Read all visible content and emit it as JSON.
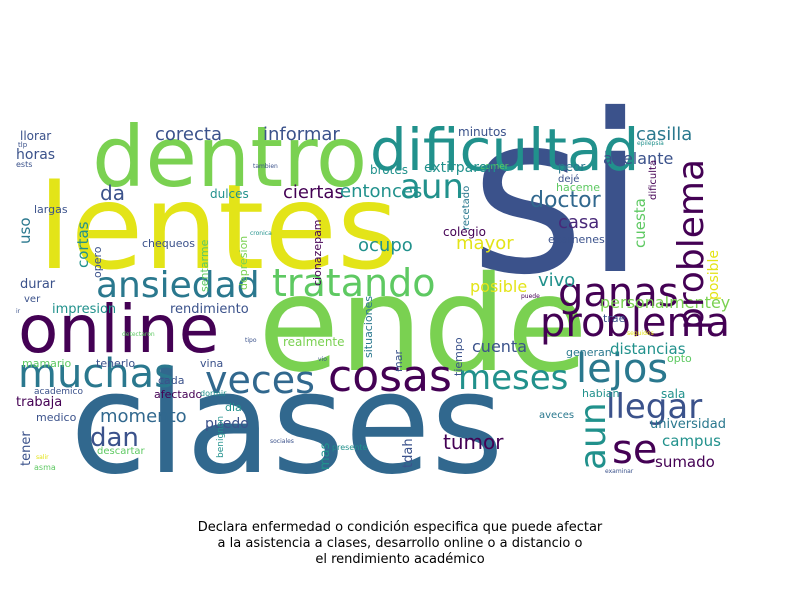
{
  "caption": {
    "lines": [
      "Declara enfermedad o condición especifica que puede afectar",
      "a la asistencia a clases, desarrollo online o a distancio o",
      "el rendimiento académico"
    ]
  },
  "palette": {
    "dark_purple": "#440154",
    "blue": "#3b528b",
    "teal": "#21918c",
    "green": "#5ec962",
    "light_green": "#7ad151",
    "yellow": "#e3e418"
  },
  "words": [
    {
      "text": "si",
      "color": "#3b528b"
    },
    {
      "text": "clases",
      "color": "#31688e"
    },
    {
      "text": "ende",
      "color": "#7ad151"
    },
    {
      "text": "lentes",
      "color": "#e3e418"
    },
    {
      "text": "dentro",
      "color": "#7ad151"
    },
    {
      "text": "online",
      "color": "#440154"
    },
    {
      "text": "dificultad",
      "color": "#21918c"
    },
    {
      "text": "cosas",
      "color": "#440154"
    },
    {
      "text": "muchas",
      "color": "#2a788e"
    },
    {
      "text": "veces",
      "color": "#31688e"
    },
    {
      "text": "meses",
      "color": "#21918c"
    },
    {
      "text": "lejos",
      "color": "#2a788e"
    },
    {
      "text": "tratando",
      "color": "#5ec962"
    },
    {
      "text": "ansiedad",
      "color": "#2a788e"
    },
    {
      "text": "problema",
      "color": "#440154"
    },
    {
      "text": "llegar",
      "color": "#3b528b"
    },
    {
      "text": "ganas",
      "color": "#440154"
    },
    {
      "text": "aun",
      "color": "#21918c"
    },
    {
      "text": "se",
      "color": "#440154"
    },
    {
      "text": "dan",
      "color": "#3b528b"
    },
    {
      "text": "da",
      "color": "#3b528b"
    },
    {
      "text": "doctor",
      "color": "#31688e"
    },
    {
      "text": "momento",
      "color": "#31688e"
    },
    {
      "text": "tumor",
      "color": "#440154"
    },
    {
      "text": "corecta",
      "color": "#3b528b"
    },
    {
      "text": "informar",
      "color": "#3b528b"
    },
    {
      "text": "casilla",
      "color": "#2a788e"
    },
    {
      "text": "adelante",
      "color": "#3b528b"
    },
    {
      "text": "cortas",
      "color": "#21918c"
    },
    {
      "text": "ciertas",
      "color": "#440154"
    },
    {
      "text": "entonces",
      "color": "#21918c"
    },
    {
      "text": "ocupo",
      "color": "#21918c"
    },
    {
      "text": "mayor",
      "color": "#e3e418"
    },
    {
      "text": "casa",
      "color": "#482878"
    },
    {
      "text": "cuesta",
      "color": "#5ec962"
    },
    {
      "text": "vivo",
      "color": "#21918c"
    },
    {
      "text": "posible",
      "color": "#e3e418"
    },
    {
      "text": "personalmentey",
      "color": "#7ad151"
    },
    {
      "text": "distancias",
      "color": "#21918c"
    },
    {
      "text": "cuenta",
      "color": "#3b528b"
    },
    {
      "text": "campus",
      "color": "#21918c"
    },
    {
      "text": "sumado",
      "color": "#440154"
    },
    {
      "text": "universidad",
      "color": "#2a788e"
    },
    {
      "text": "sala",
      "color": "#21918c"
    },
    {
      "text": "opto",
      "color": "#5ec962"
    },
    {
      "text": "generan",
      "color": "#2a788e"
    },
    {
      "text": "habian",
      "color": "#21918c"
    },
    {
      "text": "aveces",
      "color": "#2a788e"
    },
    {
      "text": "peor",
      "color": "#2a788e"
    },
    {
      "text": "comer",
      "color": "#5ec962"
    },
    {
      "text": "haceme",
      "color": "#5ec962"
    },
    {
      "text": "dificulta",
      "color": "#440154"
    },
    {
      "text": "examenes",
      "color": "#3b528b"
    },
    {
      "text": "trae",
      "color": "#3b528b"
    },
    {
      "text": "dejé",
      "color": "#3b528b"
    },
    {
      "text": "colegio",
      "color": "#440154"
    },
    {
      "text": "recetado",
      "color": "#2a788e"
    },
    {
      "text": "minutos",
      "color": "#3b528b"
    },
    {
      "text": "brotes",
      "color": "#21918c"
    },
    {
      "text": "extirparon",
      "color": "#21918c"
    },
    {
      "text": "llorar",
      "color": "#3b528b"
    },
    {
      "text": "horas",
      "color": "#3b528b"
    },
    {
      "text": "uso",
      "color": "#2a788e"
    },
    {
      "text": "durar",
      "color": "#3b528b"
    },
    {
      "text": "ver",
      "color": "#3b528b"
    },
    {
      "text": "impresion",
      "color": "#21918c"
    },
    {
      "text": "largas",
      "color": "#3b528b"
    },
    {
      "text": "tlp",
      "color": "#3b528b"
    },
    {
      "text": "ests",
      "color": "#3b528b"
    },
    {
      "text": "ir",
      "color": "#3b528b"
    },
    {
      "text": "detectaron",
      "color": "#5ec962"
    },
    {
      "text": "mamario",
      "color": "#5ec962"
    },
    {
      "text": "tenerlo",
      "color": "#3b528b"
    },
    {
      "text": "trabaja",
      "color": "#440154"
    },
    {
      "text": "academico",
      "color": "#3b528b"
    },
    {
      "text": "medico",
      "color": "#3b528b"
    },
    {
      "text": "tener",
      "color": "#3b528b"
    },
    {
      "text": "descartar",
      "color": "#5ec962"
    },
    {
      "text": "asma",
      "color": "#5ec962"
    },
    {
      "text": "salir",
      "color": "#e3e418"
    },
    {
      "text": "rendimiento",
      "color": "#3b528b"
    },
    {
      "text": "chequeos",
      "color": "#3b528b"
    },
    {
      "text": "opero",
      "color": "#3b528b"
    },
    {
      "text": "sentarme",
      "color": "#5ec962"
    },
    {
      "text": "dulces",
      "color": "#21918c"
    },
    {
      "text": "depresion",
      "color": "#7ad151"
    },
    {
      "text": "cronica",
      "color": "#21918c"
    },
    {
      "text": "tambien",
      "color": "#3b528b"
    },
    {
      "text": "cionazepam",
      "color": "#440154"
    },
    {
      "text": "tipo",
      "color": "#3b528b"
    },
    {
      "text": "vina",
      "color": "#3b528b"
    },
    {
      "text": "realmente",
      "color": "#7ad151"
    },
    {
      "text": "cada",
      "color": "#3b528b"
    },
    {
      "text": "afectado",
      "color": "#440154"
    },
    {
      "text": "dormir",
      "color": "#21918c"
    },
    {
      "text": "dia",
      "color": "#21918c"
    },
    {
      "text": "puedo",
      "color": "#3b528b"
    },
    {
      "text": "benignon",
      "color": "#21918c"
    },
    {
      "text": "vio",
      "color": "#3b528b"
    },
    {
      "text": "mas",
      "color": "#21918c"
    },
    {
      "text": "tdah",
      "color": "#3b528b"
    },
    {
      "text": "mar",
      "color": "#3b528b"
    },
    {
      "text": "situaciones",
      "color": "#2a788e"
    },
    {
      "text": "sociales",
      "color": "#3b528b"
    },
    {
      "text": "presente",
      "color": "#21918c"
    },
    {
      "text": "tiempo",
      "color": "#3b528b"
    },
    {
      "text": "puede",
      "color": "#440154"
    },
    {
      "text": "seguidos",
      "color": "#e3e418"
    },
    {
      "text": "epilepsia",
      "color": "#21918c"
    },
    {
      "text": "examinar",
      "color": "#3b528b"
    },
    {
      "text": "reparaciones",
      "color": "#3b528b"
    },
    {
      "text": "viajar",
      "color": "#3b528b"
    },
    {
      "text": "controlado",
      "color": "#3b528b"
    }
  ]
}
